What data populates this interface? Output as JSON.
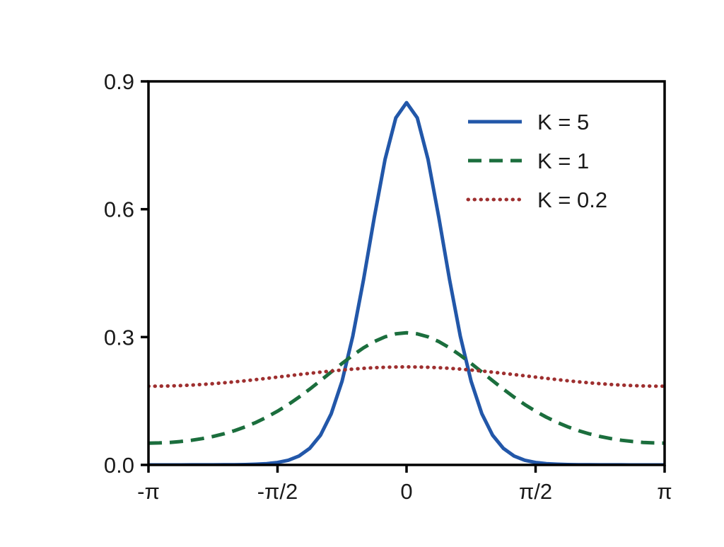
{
  "figure": {
    "background_color": "#ffffff",
    "text_color": "#1a1a1a",
    "axis_color": "#000000"
  },
  "legend": {
    "position": "upper right",
    "frame": false,
    "entries": [
      "K = 5",
      "K = 1",
      "K = 0.2"
    ]
  },
  "chart_data": {
    "type": "line",
    "title": "",
    "xlabel": "",
    "ylabel": "",
    "grid": false,
    "legend_position": "upper right",
    "xlim_over_pi": [
      -1,
      1
    ],
    "ylim": [
      0,
      0.9
    ],
    "x_axis_ticks": [
      {
        "value_over_pi": -1,
        "label": "-π"
      },
      {
        "value_over_pi": -0.5,
        "label": "-π/2"
      },
      {
        "value_over_pi": 0,
        "label": "0"
      },
      {
        "value_over_pi": 0.5,
        "label": "π/2"
      },
      {
        "value_over_pi": 1,
        "label": "π"
      }
    ],
    "y_axis_ticks": [
      {
        "value": 0,
        "label": "0.0"
      },
      {
        "value": 0.3,
        "label": "0.3"
      },
      {
        "value": 0.6,
        "label": "0.6"
      },
      {
        "value": 0.9,
        "label": "0.9"
      }
    ],
    "x_unit": "radians, expressed as multiples of π",
    "x_over_pi": [
      -1,
      -0.9583,
      -0.9167,
      -0.875,
      -0.8333,
      -0.7917,
      -0.75,
      -0.7083,
      -0.6667,
      -0.625,
      -0.5833,
      -0.5417,
      -0.5,
      -0.4583,
      -0.4167,
      -0.375,
      -0.3333,
      -0.2917,
      -0.25,
      -0.2083,
      -0.1667,
      -0.125,
      -0.0833,
      -0.0417,
      0,
      0.0417,
      0.0833,
      0.125,
      0.1667,
      0.2083,
      0.25,
      0.2917,
      0.3333,
      0.375,
      0.4167,
      0.4583,
      0.5,
      0.5417,
      0.5833,
      0.625,
      0.6667,
      0.7083,
      0.75,
      0.7917,
      0.8333,
      0.875,
      0.9167,
      0.9583,
      1
    ],
    "series": [
      {
        "name": "K = 5",
        "style": "solid",
        "color": "#2257a9",
        "values": [
          0,
          0,
          0,
          0,
          0.0001,
          0.0001,
          0.0002,
          0.0003,
          0.0005,
          0.0008,
          0.0016,
          0.003,
          0.0057,
          0.011,
          0.0209,
          0.0388,
          0.0698,
          0.1202,
          0.1965,
          0.3024,
          0.435,
          0.581,
          0.7169,
          0.8144,
          0.85,
          0.8144,
          0.7169,
          0.581,
          0.435,
          0.3024,
          0.1965,
          0.1202,
          0.0698,
          0.0388,
          0.0209,
          0.011,
          0.0057,
          0.003,
          0.0016,
          0.0008,
          0.0005,
          0.0003,
          0.0002,
          0.0001,
          0.0001,
          0,
          0,
          0,
          0
        ]
      },
      {
        "name": "K = 1",
        "style": "dashed",
        "color": "#1b6e3d",
        "values": [
          0.0512,
          0.0516,
          0.0528,
          0.0549,
          0.0578,
          0.0617,
          0.0667,
          0.0729,
          0.0804,
          0.0893,
          0.0998,
          0.1121,
          0.126,
          0.1417,
          0.1591,
          0.1779,
          0.1977,
          0.218,
          0.2382,
          0.2574,
          0.2748,
          0.2895,
          0.3006,
          0.3076,
          0.31,
          0.3076,
          0.3006,
          0.2895,
          0.2748,
          0.2574,
          0.2382,
          0.218,
          0.1977,
          0.1779,
          0.1591,
          0.1417,
          0.126,
          0.1121,
          0.0998,
          0.0893,
          0.0804,
          0.0729,
          0.0667,
          0.0617,
          0.0578,
          0.0549,
          0.0528,
          0.0516,
          0.0512
        ]
      },
      {
        "name": "K = 0.2",
        "style": "dotted",
        "color": "#9e2f2f",
        "values": [
          0.1846,
          0.1848,
          0.1853,
          0.1861,
          0.1873,
          0.1888,
          0.1906,
          0.1927,
          0.195,
          0.1975,
          0.2003,
          0.2031,
          0.206,
          0.209,
          0.212,
          0.2149,
          0.2177,
          0.2203,
          0.2227,
          0.2248,
          0.2266,
          0.2281,
          0.2291,
          0.2298,
          0.23,
          0.2298,
          0.2291,
          0.2281,
          0.2266,
          0.2248,
          0.2227,
          0.2203,
          0.2177,
          0.2149,
          0.212,
          0.209,
          0.206,
          0.2031,
          0.2003,
          0.1975,
          0.195,
          0.1927,
          0.1906,
          0.1888,
          0.1873,
          0.1861,
          0.1853,
          0.1848,
          0.1846
        ]
      }
    ]
  }
}
